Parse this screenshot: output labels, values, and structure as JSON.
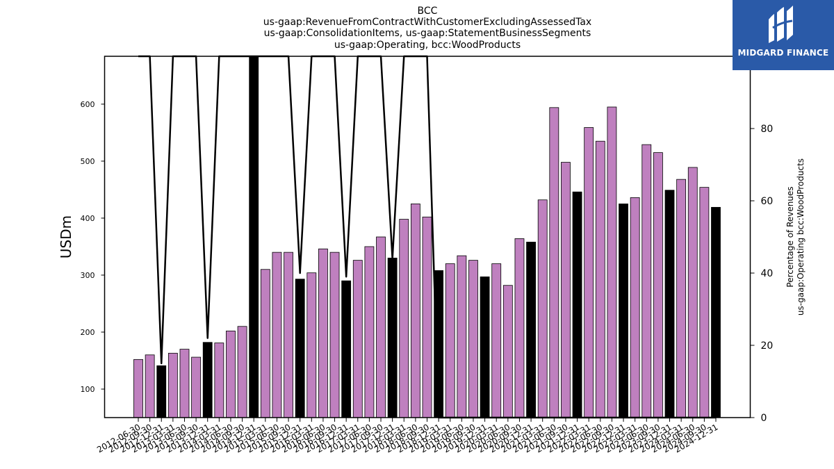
{
  "header": {
    "title_lines": [
      "BCC",
      "us-gaap:RevenueFromContractWithCustomerExcludingAssessedTax",
      "us-gaap:ConsolidationItems, us-gaap:StatementBusinessSegments",
      "us-gaap:Operating, bcc:WoodProducts"
    ]
  },
  "logo": {
    "text": "MIDGARD FINANCE",
    "background": "#2a5aa8",
    "icon": "midgard-logo-icon"
  },
  "chart_data": {
    "type": "bar",
    "ylabel": "USDm",
    "y2label_lines": [
      "Percentage of Revenues",
      "us-gaap:Operating bcc:WoodProducts"
    ],
    "ylim": [
      50,
      684
    ],
    "y2lim": [
      0,
      100
    ],
    "y_ticks": [
      100,
      200,
      300,
      400,
      500,
      600
    ],
    "y2_ticks": [
      0,
      20,
      40,
      60,
      80,
      100
    ],
    "colors": {
      "quarter_bar": "#bf80bf",
      "annual_bar": "#000000",
      "line": "#000000"
    },
    "categories": [
      "2012-06-30",
      "2012-09-30",
      "2012-12-31",
      "2013-03-31",
      "2013-06-30",
      "2013-09-30",
      "2013-12-31",
      "2014-03-31",
      "2014-06-30",
      "2014-09-30",
      "2014-12-31",
      "2015-03-31",
      "2015-06-30",
      "2015-09-30",
      "2015-12-31",
      "2016-03-31",
      "2016-06-30",
      "2016-09-30",
      "2016-12-31",
      "2017-03-31",
      "2017-06-30",
      "2017-09-30",
      "2017-12-31",
      "2018-03-31",
      "2018-06-30",
      "2018-09-30",
      "2018-12-31",
      "2019-03-31",
      "2019-06-30",
      "2019-09-30",
      "2019-12-31",
      "2020-03-31",
      "2020-06-30",
      "2020-09-30",
      "2020-12-31",
      "2021-03-31",
      "2021-06-30",
      "2021-09-30",
      "2021-12-31",
      "2022-03-31",
      "2022-06-30",
      "2022-09-30",
      "2022-12-31",
      "2023-03-31",
      "2023-06-30",
      "2023-09-30",
      "2023-12-31",
      "2024-03-31",
      "2024-06-30",
      "2024-09-30",
      "2024-12-31"
    ],
    "series": [
      {
        "values": [
          152,
          160,
          141,
          163,
          170,
          156,
          182,
          181,
          202,
          210,
          684,
          310,
          340,
          340,
          293,
          304,
          346,
          340,
          290,
          326,
          350,
          367,
          330,
          398,
          425,
          402,
          308,
          320,
          334,
          326,
          297,
          320,
          282,
          364,
          358,
          432,
          594,
          498,
          446,
          559,
          535,
          595,
          425,
          436,
          529,
          515,
          449,
          468,
          489,
          454,
          419
        ],
        "kind": [
          "q",
          "q",
          "a",
          "q",
          "q",
          "q",
          "a",
          "q",
          "q",
          "q",
          "a",
          "q",
          "q",
          "q",
          "a",
          "q",
          "q",
          "q",
          "a",
          "q",
          "q",
          "q",
          "a",
          "q",
          "q",
          "q",
          "a",
          "q",
          "q",
          "q",
          "a",
          "q",
          "q",
          "q",
          "a",
          "q",
          "q",
          "q",
          "a",
          "q",
          "q",
          "q",
          "a",
          "q",
          "q",
          "q",
          "a",
          "q",
          "q",
          "q",
          "a"
        ]
      },
      {
        "type": "line",
        "values": [
          100,
          100,
          15,
          100,
          100,
          100,
          22,
          100,
          100,
          100,
          100,
          100,
          100,
          100,
          40,
          100,
          100,
          100,
          39,
          100,
          100,
          100,
          44,
          100,
          100,
          100,
          0,
          0,
          0,
          0,
          0,
          0,
          0,
          0,
          0,
          0,
          0,
          0,
          0,
          0,
          0,
          0,
          0,
          0,
          0,
          0,
          0,
          0,
          0,
          0,
          0
        ]
      }
    ]
  }
}
